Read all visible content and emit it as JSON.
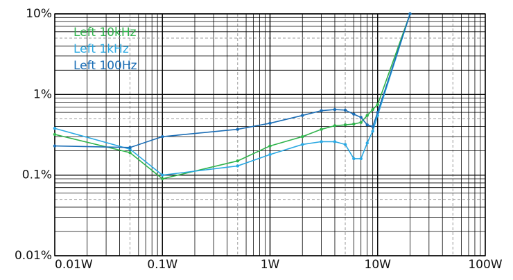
{
  "chart_data": {
    "type": "line",
    "x": [
      0.01,
      0.05,
      0.1,
      0.5,
      1,
      2,
      3,
      4,
      5,
      6,
      7,
      8,
      9,
      10,
      20
    ],
    "series": [
      {
        "name": "Left 10kHz",
        "color": "#2fb34b",
        "values": [
          0.32,
          0.19,
          0.09,
          0.15,
          0.23,
          0.3,
          0.37,
          0.41,
          0.42,
          0.43,
          0.45,
          0.55,
          0.65,
          0.75,
          10
        ]
      },
      {
        "name": "Left 1kHz",
        "color": "#2aa8e2",
        "values": [
          0.38,
          0.21,
          0.1,
          0.13,
          0.18,
          0.24,
          0.26,
          0.26,
          0.24,
          0.16,
          0.16,
          0.25,
          0.35,
          0.55,
          10
        ]
      },
      {
        "name": "Left 100Hz",
        "color": "#1a6db5",
        "values": [
          0.23,
          0.22,
          0.3,
          0.37,
          0.44,
          0.55,
          0.63,
          0.65,
          0.64,
          0.57,
          0.52,
          0.42,
          0.4,
          0.6,
          10
        ]
      }
    ],
    "xlim": [
      0.01,
      100
    ],
    "ylim": [
      0.01,
      10
    ],
    "log_x": true,
    "log_y": true,
    "xticks": [
      {
        "value": 0.01,
        "label": "0.01W"
      },
      {
        "value": 0.1,
        "label": "0.1W"
      },
      {
        "value": 1,
        "label": "1W"
      },
      {
        "value": 10,
        "label": "10W"
      },
      {
        "value": 100,
        "label": "100W"
      }
    ],
    "yticks": [
      {
        "value": 0.01,
        "label": "0.01%"
      },
      {
        "value": 0.1,
        "label": "0.1%"
      },
      {
        "value": 1,
        "label": "1%"
      },
      {
        "value": 10,
        "label": "10%"
      }
    ],
    "grid": true,
    "minor_grid": true,
    "legend": "upper left"
  }
}
